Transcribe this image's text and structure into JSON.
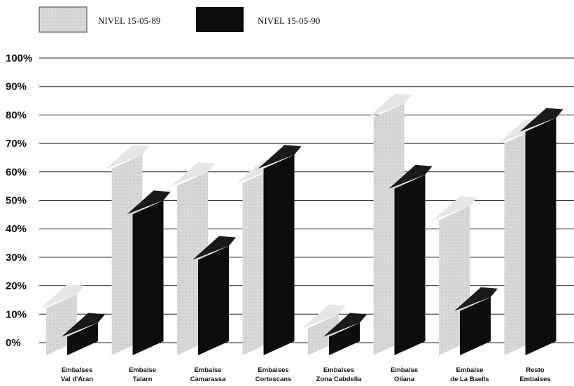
{
  "chart_data": {
    "type": "bar",
    "style": "3d-shaded",
    "categories": [
      [
        "Embalses",
        "Val d'Aran"
      ],
      [
        "Embalse",
        "Talarn"
      ],
      [
        "Embalse",
        "Camarassa"
      ],
      [
        "Embalses",
        "Cortescans"
      ],
      [
        "Embalses",
        "Zona Cabdella"
      ],
      [
        "Embalse",
        "Oliana"
      ],
      [
        "Embalse",
        "de La Baells"
      ],
      [
        "Resto",
        "Embalses"
      ]
    ],
    "series": [
      {
        "name": "NIVEL 15-05-89",
        "color": "#dcdcdc",
        "values": [
          18,
          67,
          61,
          62,
          11,
          85,
          49,
          76
        ]
      },
      {
        "name": "NIVEL 15-05-90",
        "color": "#0d0d0d",
        "values": [
          8,
          51,
          35,
          67,
          8,
          60,
          17,
          80
        ]
      }
    ],
    "y_ticks": [
      "0%",
      "10%",
      "20%",
      "30%",
      "40%",
      "50%",
      "60%",
      "70%",
      "80%",
      "90%",
      "100%"
    ],
    "ylim": [
      0,
      100
    ],
    "grid": true,
    "legend_position": "top-left"
  }
}
